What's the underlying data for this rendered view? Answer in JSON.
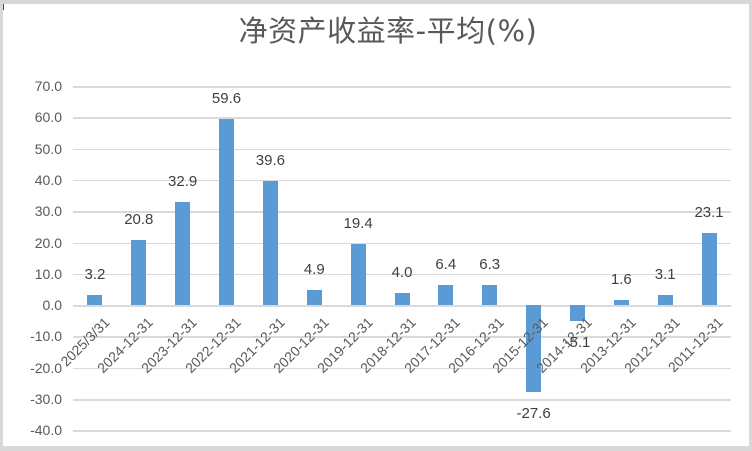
{
  "chart_data": {
    "type": "bar",
    "title": "净资产收益率-平均(%)",
    "categories": [
      "2025/3/31",
      "2024-12-31",
      "2023-12-31",
      "2022-12-31",
      "2021-12-31",
      "2020-12-31",
      "2019-12-31",
      "2018-12-31",
      "2017-12-31",
      "2016-12-31",
      "2015-12-31",
      "2014-12-31",
      "2013-12-31",
      "2012-12-31",
      "2011-12-31"
    ],
    "values": [
      3.2,
      20.8,
      32.9,
      59.6,
      39.6,
      4.9,
      19.4,
      4.0,
      6.4,
      6.3,
      -27.6,
      -5.1,
      1.6,
      3.1,
      23.1
    ],
    "data_labels": [
      "3.2",
      "20.8",
      "32.9",
      "59.6",
      "39.6",
      "4.9",
      "19.4",
      "4.0",
      "6.4",
      "6.3",
      "-27.6",
      "-5.1",
      "1.6",
      "3.1",
      "23.1"
    ],
    "xlabel": "",
    "ylabel": "",
    "ylim": [
      -40,
      70
    ],
    "grid": true,
    "legend_position": "none",
    "x_label_rotation_deg": 45,
    "y_ticks": [
      {
        "value": 70,
        "label": "70.0"
      },
      {
        "value": 60,
        "label": "60.0"
      },
      {
        "value": 50,
        "label": "50.0"
      },
      {
        "value": 40,
        "label": "40.0"
      },
      {
        "value": 30,
        "label": "30.0"
      },
      {
        "value": 20,
        "label": "20.0"
      },
      {
        "value": 10,
        "label": "10.0"
      },
      {
        "value": 0,
        "label": "0.0"
      },
      {
        "value": -10,
        "label": "-10.0"
      },
      {
        "value": -20,
        "label": "-20.0"
      },
      {
        "value": -30,
        "label": "-30.0"
      },
      {
        "value": -40,
        "label": "-40.0"
      }
    ],
    "colors": {
      "bar": "#5B9BD5",
      "title_text": "#595959",
      "axis_label_text": "#595959",
      "data_label_text": "#404040",
      "gridline": "#D9D9D9",
      "chart_border": "#D8D8D8",
      "background": "#FFFFFF"
    }
  }
}
